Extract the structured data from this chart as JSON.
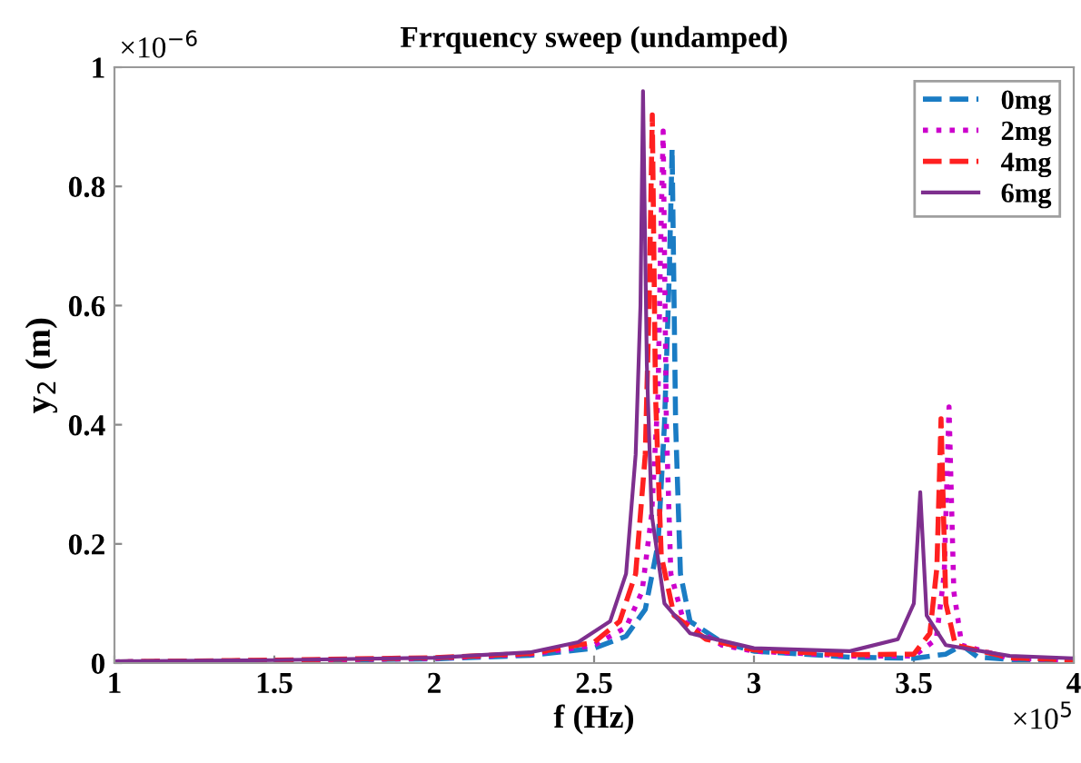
{
  "chart_data": {
    "type": "line",
    "title": "Frrquency sweep (undamped)",
    "xlabel": "f (Hz)",
    "ylabel": "y$_{2}$ (m)",
    "annotations": [
      "×10$^{−6}$",
      "×10$^{5}$"
    ],
    "xlim": [
      1,
      4
    ],
    "xticks": [
      1,
      1.5,
      2,
      2.5,
      3,
      3.5,
      4
    ],
    "ylim": [
      0,
      1
    ],
    "yticks": [
      0,
      0.2,
      0.4,
      0.6,
      0.8,
      1
    ],
    "grid": false,
    "legend": "top right",
    "marker": "none",
    "series": [
      {
        "name": "0mg",
        "color": "#1a7cc4",
        "line_style": "dashed",
        "x": [
          1.0,
          1.5,
          2.0,
          2.3,
          2.5,
          2.6,
          2.66,
          2.7,
          2.72,
          2.735,
          2.744,
          2.755,
          2.77,
          2.8,
          2.9,
          3.0,
          3.3,
          3.5,
          3.6,
          3.65,
          3.7,
          3.8,
          4.0
        ],
        "values": [
          0.002,
          0.004,
          0.007,
          0.013,
          0.025,
          0.045,
          0.09,
          0.2,
          0.4,
          0.65,
          0.863,
          0.4,
          0.15,
          0.07,
          0.035,
          0.02,
          0.01,
          0.008,
          0.015,
          0.03,
          0.01,
          0.006,
          0.004
        ]
      },
      {
        "name": "2mg",
        "color": "#cc00cc",
        "line_style": "dotted",
        "x": [
          1.0,
          1.5,
          2.0,
          2.3,
          2.5,
          2.6,
          2.65,
          2.68,
          2.7,
          2.708,
          2.716,
          2.726,
          2.74,
          2.78,
          2.9,
          3.0,
          3.3,
          3.5,
          3.57,
          3.595,
          3.61,
          3.625,
          3.65,
          3.8,
          4.0
        ],
        "values": [
          0.002,
          0.004,
          0.008,
          0.015,
          0.03,
          0.06,
          0.12,
          0.25,
          0.45,
          0.7,
          0.893,
          0.4,
          0.15,
          0.07,
          0.03,
          0.02,
          0.012,
          0.012,
          0.04,
          0.15,
          0.43,
          0.12,
          0.03,
          0.008,
          0.005
        ]
      },
      {
        "name": "4mg",
        "color": "#ff2020",
        "line_style": "dashed",
        "x": [
          1.0,
          1.5,
          2.0,
          2.3,
          2.5,
          2.58,
          2.63,
          2.66,
          2.672,
          2.682,
          2.692,
          2.71,
          2.75,
          2.85,
          3.0,
          3.3,
          3.5,
          3.55,
          3.572,
          3.585,
          3.6,
          3.63,
          3.8,
          4.0
        ],
        "values": [
          0.002,
          0.005,
          0.009,
          0.016,
          0.035,
          0.07,
          0.15,
          0.35,
          0.6,
          0.92,
          0.45,
          0.18,
          0.08,
          0.04,
          0.022,
          0.014,
          0.015,
          0.05,
          0.16,
          0.41,
          0.1,
          0.03,
          0.009,
          0.005
        ]
      },
      {
        "name": "6mg",
        "color": "#7e2f8e",
        "line_style": "solid",
        "x": [
          1.0,
          1.5,
          2.0,
          2.3,
          2.45,
          2.55,
          2.6,
          2.63,
          2.645,
          2.653,
          2.665,
          2.68,
          2.72,
          2.8,
          3.0,
          3.3,
          3.45,
          3.5,
          3.52,
          3.54,
          3.6,
          3.8,
          4.0
        ],
        "values": [
          0.003,
          0.005,
          0.009,
          0.018,
          0.035,
          0.07,
          0.15,
          0.35,
          0.6,
          0.96,
          0.5,
          0.25,
          0.1,
          0.05,
          0.025,
          0.02,
          0.04,
          0.1,
          0.287,
          0.08,
          0.03,
          0.012,
          0.008
        ]
      }
    ]
  }
}
